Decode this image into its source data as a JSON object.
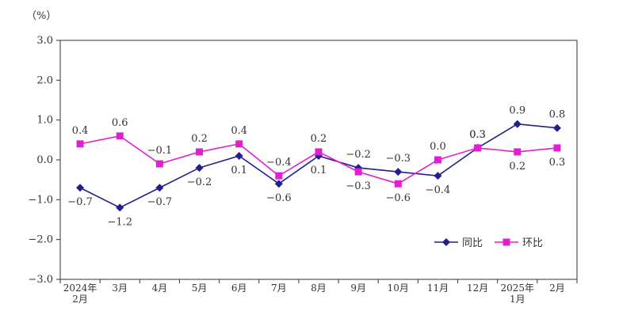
{
  "chart_data": {
    "type": "line",
    "unit_label": "（%）",
    "ylim": [
      -3.0,
      3.0
    ],
    "y_ticks": [
      "3.0",
      "2.0",
      "1.0",
      "0.0",
      "−1.0",
      "−2.0",
      "−3.0"
    ],
    "y_tick_values": [
      3,
      2,
      1,
      0,
      -1,
      -2,
      -3
    ],
    "categories": [
      [
        "2024年",
        "2月"
      ],
      [
        "3月"
      ],
      [
        "4月"
      ],
      [
        "5月"
      ],
      [
        "6月"
      ],
      [
        "7月"
      ],
      [
        "8月"
      ],
      [
        "9月"
      ],
      [
        "10月"
      ],
      [
        "11月"
      ],
      [
        "12月"
      ],
      [
        "2025年",
        "1月"
      ],
      [
        "2月"
      ]
    ],
    "series": [
      {
        "name": "同比",
        "color": "#1f1f8f",
        "marker": "diamond",
        "values": [
          -0.7,
          -1.2,
          -0.7,
          -0.2,
          0.1,
          -0.6,
          0.1,
          -0.2,
          -0.3,
          -0.4,
          0.3,
          0.9,
          0.8
        ],
        "labels": [
          "−0.7",
          "−1.2",
          "−0.7",
          "−0.2",
          "0.1",
          "−0.6",
          "0.1",
          "−0.2",
          "−0.3",
          "−0.4",
          "0.3",
          "0.9",
          "0.8"
        ]
      },
      {
        "name": "环比",
        "color": "#e020d0",
        "marker": "square",
        "values": [
          0.4,
          0.6,
          -0.1,
          0.2,
          0.4,
          -0.4,
          0.2,
          -0.3,
          -0.6,
          0.0,
          0.3,
          0.2,
          0.3
        ],
        "labels": [
          "0.4",
          "0.6",
          "−0.1",
          "0.2",
          "0.4",
          "−0.4",
          "0.2",
          "−0.3",
          "−0.6",
          "0.0",
          "0.3",
          "0.2",
          "0.3"
        ]
      }
    ],
    "grid": false,
    "legend_position": "bottom-right"
  }
}
